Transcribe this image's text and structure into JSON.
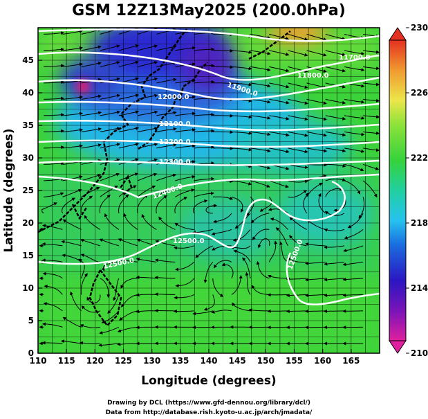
{
  "title": "GSM 12Z13May2025 (200.0hPa)",
  "xlabel": "Longitude (degrees)",
  "ylabel": "Latitude  (degrees)",
  "x_ticks": [
    "110",
    "115",
    "120",
    "125",
    "130",
    "135",
    "140",
    "145",
    "150",
    "155",
    "160",
    "165"
  ],
  "y_ticks": [
    "0",
    "5",
    "10",
    "15",
    "20",
    "25",
    "30",
    "35",
    "40",
    "45"
  ],
  "colorbar": {
    "labels": [
      "210",
      "214",
      "218",
      "222",
      "226",
      "230"
    ],
    "colors": [
      "#e0209e",
      "#2b16c2",
      "#27c2ee",
      "#36d23c",
      "#ece64a",
      "#e43020"
    ]
  },
  "contour_labels": [
    "11700.0",
    "11800.0",
    "11900.0",
    "12000.0",
    "12100.0",
    "12200.0",
    "12300.0",
    "12400.0",
    "12500.0",
    "12500.0",
    "12500.0"
  ],
  "credits": {
    "line1": "Drawing by DCL (https://www.gfd-dennou.org/library/dcl/)",
    "line2": "Data from http://database.rish.kyoto-u.ac.jp/arch/jmadata/"
  },
  "chart_data": {
    "type": "heatmap",
    "title": "GSM 12Z13May2025 (200.0hPa)",
    "xlabel": "Longitude (degrees)",
    "ylabel": "Latitude  (degrees)",
    "xlim": [
      110,
      170
    ],
    "ylim": [
      0,
      50
    ],
    "color_range": [
      210,
      230
    ],
    "colorbar_ticks": [
      210,
      214,
      218,
      222,
      226,
      230
    ],
    "contour_levels": [
      11700,
      11800,
      11900,
      12000,
      12100,
      12200,
      12300,
      12400,
      12500
    ],
    "overlay": "wind streamlines",
    "grid": true
  }
}
